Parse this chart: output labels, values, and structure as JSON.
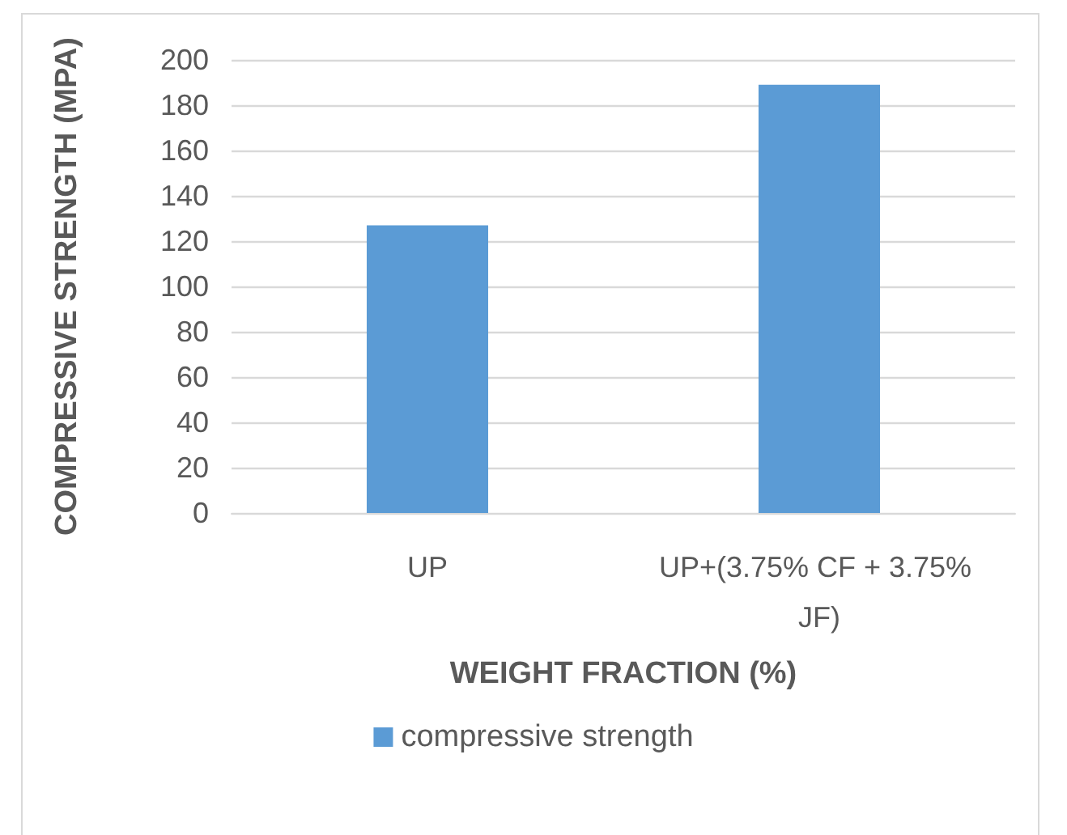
{
  "chart_data": {
    "type": "bar",
    "categories": [
      "UP",
      "UP+(3.75% CF + 3.75% JF)"
    ],
    "series": [
      {
        "name": "compressive strength",
        "color": "#5b9bd5",
        "values": [
          127,
          189
        ]
      }
    ],
    "xlabel": "WEIGHT FRACTION (%)",
    "ylabel": "COMPRESSIVE STRENGTH (MPA)",
    "ylim": [
      0,
      200
    ],
    "yticks": [
      0,
      20,
      40,
      60,
      80,
      100,
      120,
      140,
      160,
      180,
      200
    ],
    "grid": "y",
    "legend": "bottom"
  }
}
